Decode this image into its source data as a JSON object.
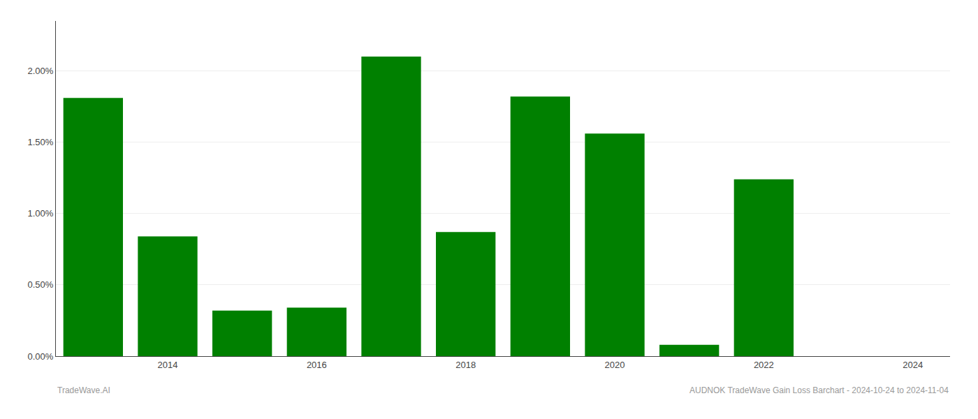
{
  "chart_data": {
    "type": "bar",
    "x": [
      2013,
      2014,
      2015,
      2016,
      2017,
      2018,
      2019,
      2020,
      2021,
      2022,
      2023
    ],
    "values": [
      0.0181,
      0.0084,
      0.0032,
      0.0034,
      0.021,
      0.0087,
      0.0182,
      0.0156,
      0.0008,
      0.0124,
      0.0
    ],
    "color": "#008000",
    "xlim": [
      2012.5,
      2024.5
    ],
    "xticks": [
      2014,
      2016,
      2018,
      2020,
      2022,
      2024
    ],
    "ylim": [
      0.0,
      0.0235
    ],
    "yticks": [
      {
        "value": 0.0,
        "label": "0.00%"
      },
      {
        "value": 0.005,
        "label": "0.50%"
      },
      {
        "value": 0.01,
        "label": "1.00%"
      },
      {
        "value": 0.015,
        "label": "1.50%"
      },
      {
        "value": 0.02,
        "label": "2.00%"
      }
    ],
    "grid": true,
    "annotations": [
      "TradeWave.AI",
      "AUDNOK TradeWave Gain Loss Barchart - 2024-10-24 to 2024-11-04"
    ]
  }
}
